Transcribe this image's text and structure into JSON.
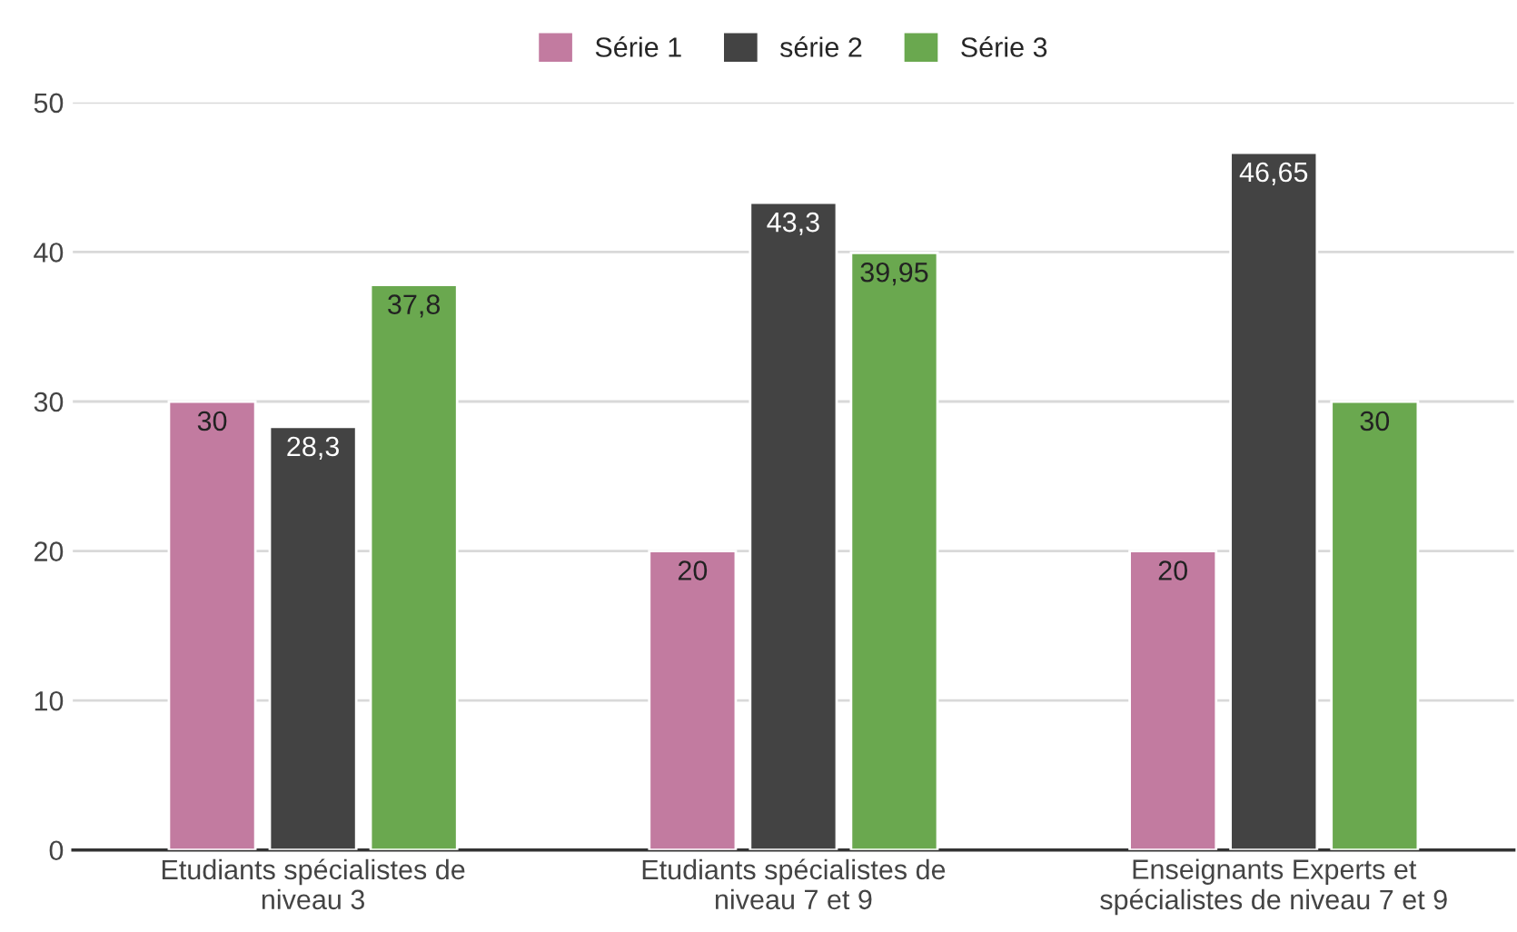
{
  "chart_data": {
    "type": "bar",
    "categories": [
      "Etudiants spécialistes de\nniveau 3",
      "Etudiants spécialistes de\nniveau 7 et 9",
      "Enseignants Experts et\nspécialistes de niveau 7 et 9"
    ],
    "series": [
      {
        "name": "Série 1",
        "color": "#c27ba0",
        "values": [
          30,
          20,
          20
        ],
        "value_labels": [
          "30",
          "20",
          "20"
        ]
      },
      {
        "name": "série 2",
        "color": "#434343",
        "values": [
          28.3,
          43.3,
          46.65
        ],
        "value_labels": [
          "28,3",
          "43,3",
          "46,65"
        ]
      },
      {
        "name": "Série 3",
        "color": "#6aa84f",
        "values": [
          37.8,
          39.95,
          30
        ],
        "value_labels": [
          "37,8",
          "39,95",
          "30"
        ]
      }
    ],
    "ylim": [
      0,
      50
    ],
    "yticks": [
      0,
      10,
      20,
      30,
      40,
      50
    ],
    "grid": "y",
    "legend": "top"
  }
}
